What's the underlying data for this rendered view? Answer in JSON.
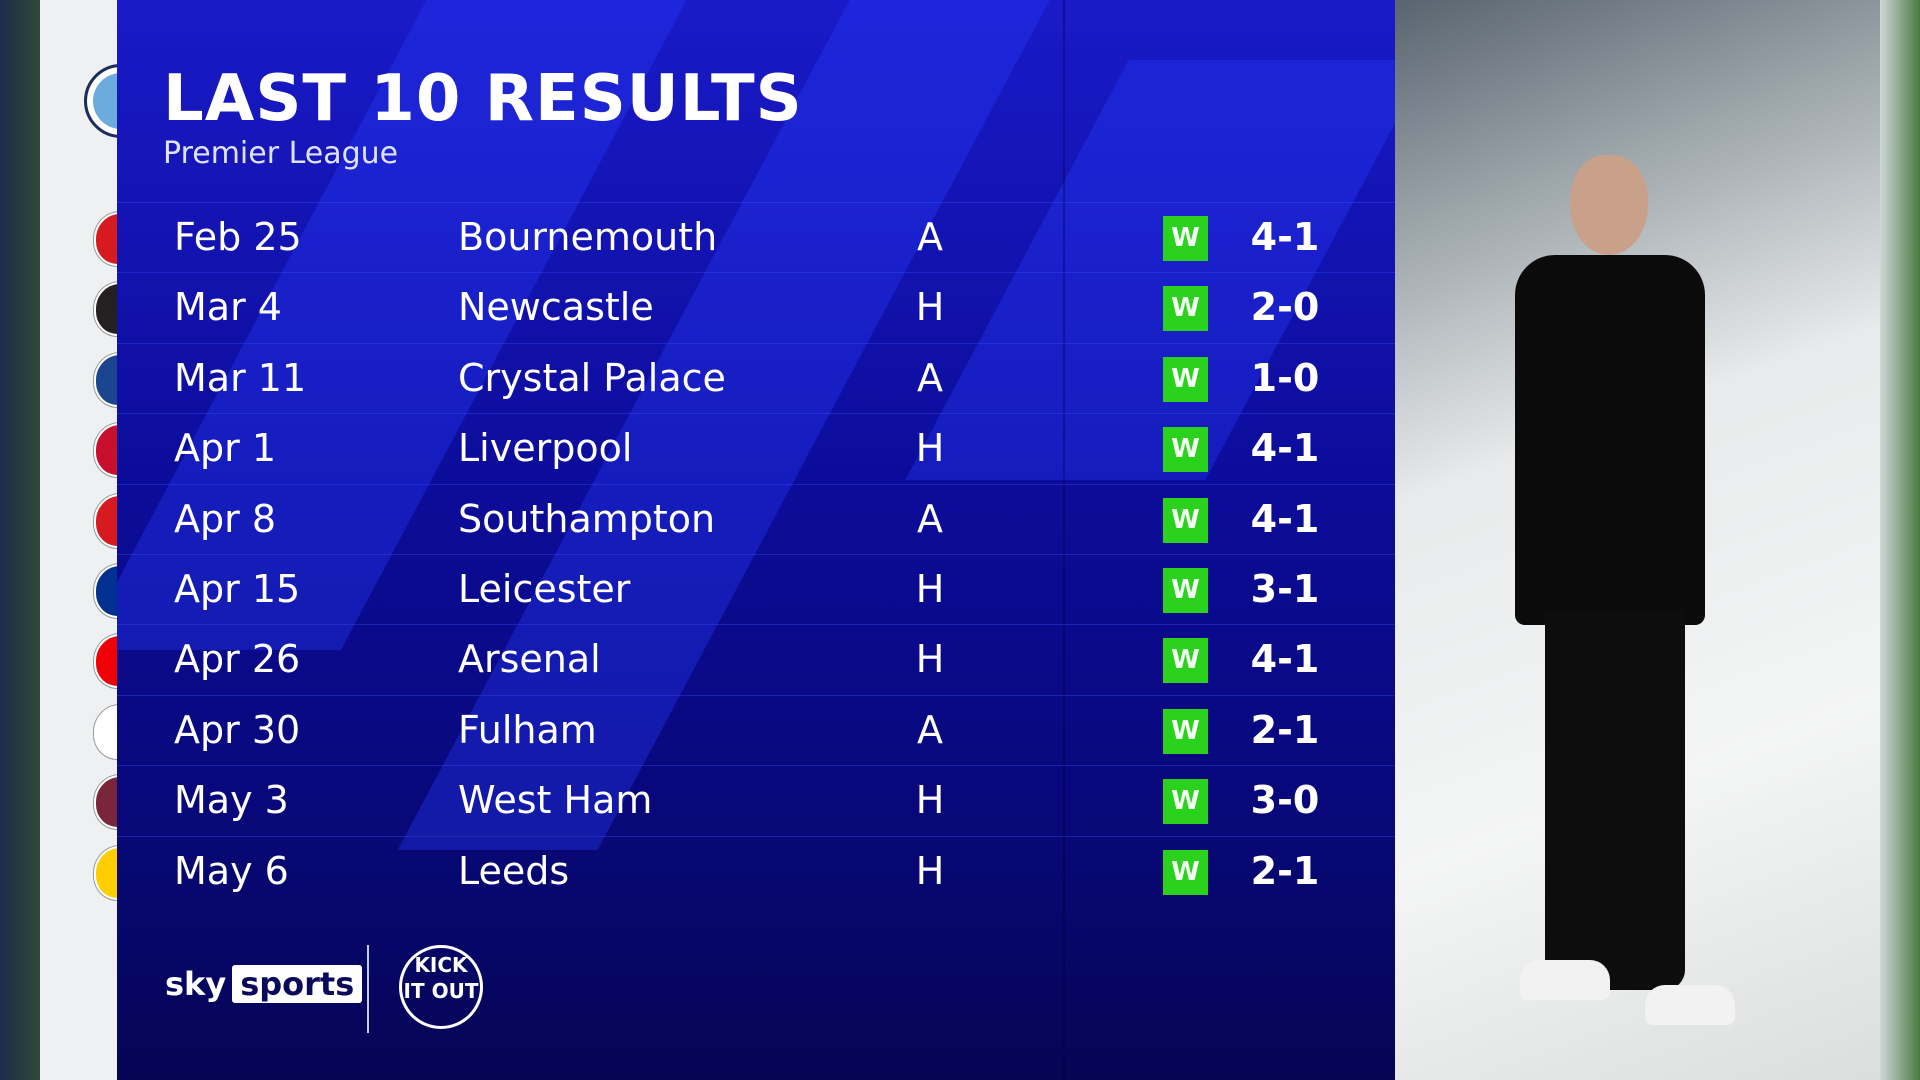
{
  "header": {
    "title": "LAST 10 RESULTS",
    "subtitle": "Premier League"
  },
  "team_crest": "manchester-city-crest",
  "colors": {
    "panel": "#0c0c9a",
    "win_badge": "#2ad21e",
    "text": "#ffffff"
  },
  "results": [
    {
      "date": "Feb 25",
      "opponent": "Bournemouth",
      "venue": "A",
      "outcome": "W",
      "score": "4-1",
      "crest_color": "#d71920"
    },
    {
      "date": "Mar 4",
      "opponent": "Newcastle",
      "venue": "H",
      "outcome": "W",
      "score": "2-0",
      "crest_color": "#241f20"
    },
    {
      "date": "Mar 11",
      "opponent": "Crystal Palace",
      "venue": "A",
      "outcome": "W",
      "score": "1-0",
      "crest_color": "#1b458f"
    },
    {
      "date": "Apr 1",
      "opponent": "Liverpool",
      "venue": "H",
      "outcome": "W",
      "score": "4-1",
      "crest_color": "#c8102e"
    },
    {
      "date": "Apr 8",
      "opponent": "Southampton",
      "venue": "A",
      "outcome": "W",
      "score": "4-1",
      "crest_color": "#d71920"
    },
    {
      "date": "Apr 15",
      "opponent": "Leicester",
      "venue": "H",
      "outcome": "W",
      "score": "3-1",
      "crest_color": "#003090"
    },
    {
      "date": "Apr 26",
      "opponent": "Arsenal",
      "venue": "H",
      "outcome": "W",
      "score": "4-1",
      "crest_color": "#ef0107"
    },
    {
      "date": "Apr 30",
      "opponent": "Fulham",
      "venue": "A",
      "outcome": "W",
      "score": "2-1",
      "crest_color": "#ffffff"
    },
    {
      "date": "May 3",
      "opponent": "West Ham",
      "venue": "H",
      "outcome": "W",
      "score": "3-0",
      "crest_color": "#7a263a"
    },
    {
      "date": "May 6",
      "opponent": "Leeds",
      "venue": "H",
      "outcome": "W",
      "score": "2-1",
      "crest_color": "#ffcd00"
    }
  ],
  "footer": {
    "sky_label": "sky",
    "sports_label": "sports",
    "kick_it_out": "KICK IT OUT"
  }
}
